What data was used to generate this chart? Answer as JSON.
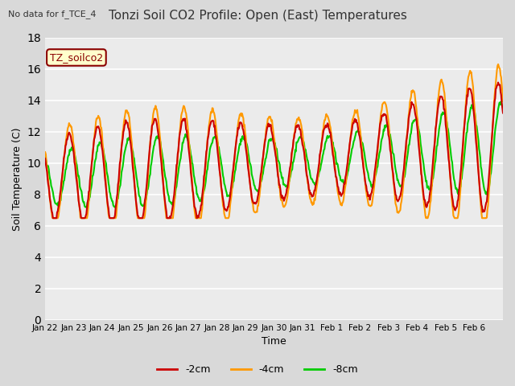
{
  "title": "Tonzi Soil CO2 Profile: Open (East) Temperatures",
  "subtitle": "No data for f_TCE_4",
  "ylabel": "Soil Temperature (C)",
  "xlabel": "Time",
  "ylim": [
    0,
    18
  ],
  "yticks": [
    0,
    2,
    4,
    6,
    8,
    10,
    12,
    14,
    16,
    18
  ],
  "xtick_labels": [
    "Jan 22",
    "Jan 23",
    "Jan 24",
    "Jan 25",
    "Jan 26",
    "Jan 27",
    "Jan 28",
    "Jan 29",
    "Jan 30",
    "Jan 31",
    "Feb 1",
    "Feb 2",
    "Feb 3",
    "Feb 4",
    "Feb 5",
    "Feb 6"
  ],
  "colors": {
    "2cm": "#cc0000",
    "4cm": "#ff9900",
    "8cm": "#00cc00"
  },
  "legend_label": "TZ_soilco2",
  "fig_bg": "#d9d9d9",
  "plot_bg": "#ebebeb",
  "line_width": 1.5
}
